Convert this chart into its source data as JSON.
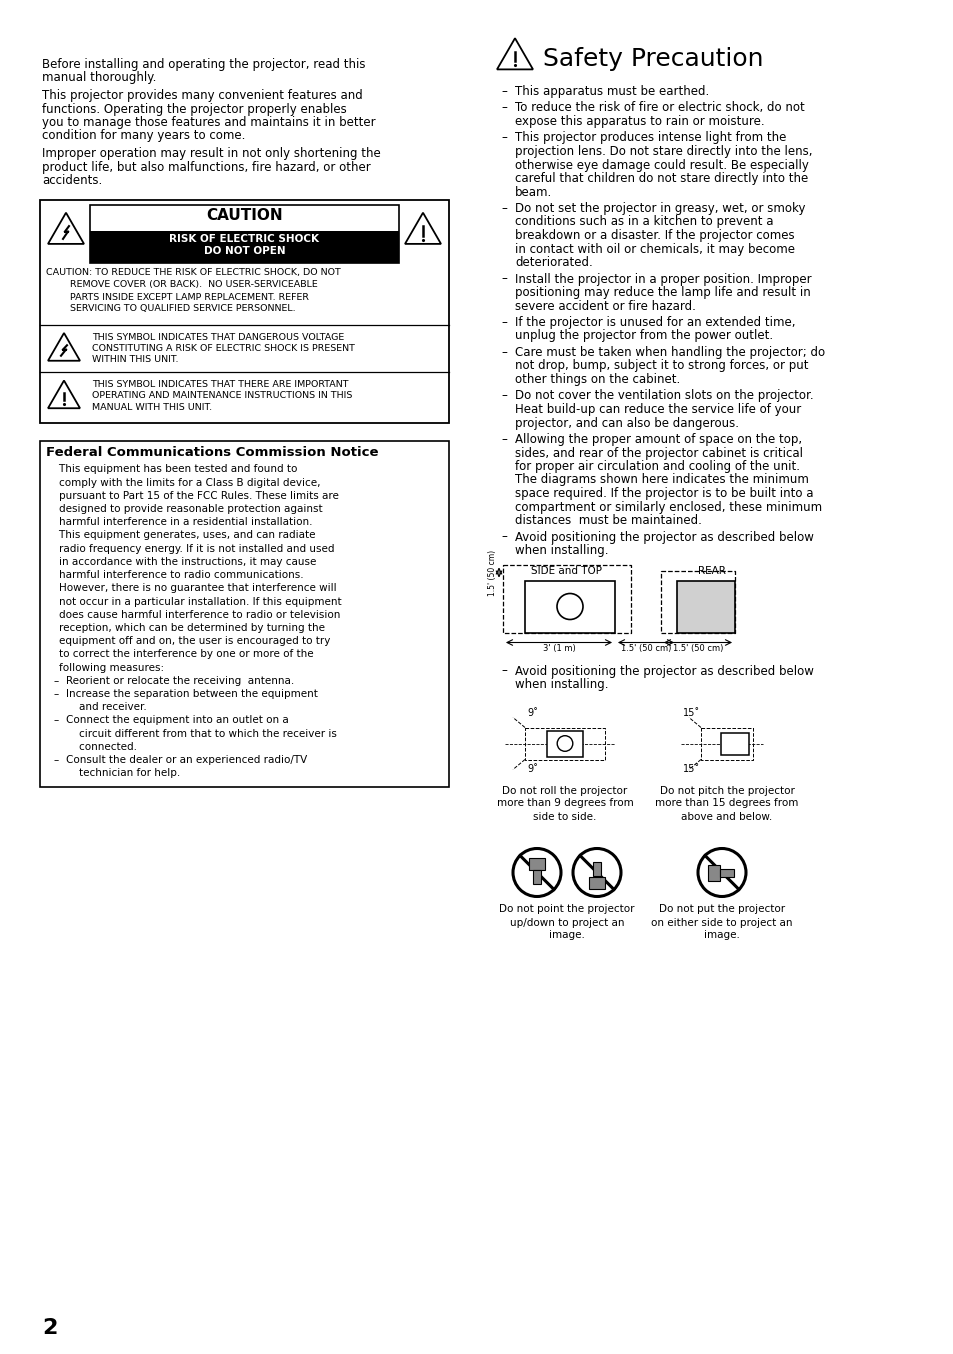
{
  "bg_color": "#ffffff",
  "page_number": "2",
  "left_intro_paras": [
    "Before installing and operating the projector, read this\nmanual thoroughly.",
    "This projector provides many convenient features and\nfunctions. Operating the projector properly enables\nyou to manage those features and maintains it in better\ncondition for many years to come.",
    "Improper operation may result in not only shortening the\nproduct life, but also malfunctions, fire hazard, or other\naccidents."
  ],
  "caution_title": "CAUTION",
  "caution_black1": "RISK OF ELECTRIC SHOCK",
  "caution_black2": "DO NOT OPEN",
  "caution_body_lines": [
    "CAUTION: TO REDUCE THE RISK OF ELECTRIC SHOCK, DO NOT",
    "        REMOVE COVER (OR BACK).  NO USER-SERVICEABLE",
    "        PARTS INSIDE EXCEPT LAMP REPLACEMENT. REFER",
    "        SERVICING TO QUALIFIED SERVICE PERSONNEL."
  ],
  "sym1_lines": [
    "THIS SYMBOL INDICATES THAT DANGEROUS VOLTAGE",
    "CONSTITUTING A RISK OF ELECTRIC SHOCK IS PRESENT",
    "WITHIN THIS UNIT."
  ],
  "sym2_lines": [
    "THIS SYMBOL INDICATES THAT THERE ARE IMPORTANT",
    "OPERATING AND MAINTENANCE INSTRUCTIONS IN THIS",
    "MANUAL WITH THIS UNIT."
  ],
  "fcc_title": "Federal Communications Commission Notice",
  "fcc_body_lines": [
    "    This equipment has been tested and found to",
    "    comply with the limits for a Class B digital device,",
    "    pursuant to Part 15 of the FCC Rules. These limits are",
    "    designed to provide reasonable protection against",
    "    harmful interference in a residential installation.",
    "    This equipment generates, uses, and can radiate",
    "    radio frequency energy. If it is not installed and used",
    "    in accordance with the instructions, it may cause",
    "    harmful interference to radio communications.",
    "    However, there is no guarantee that interference will",
    "    not occur in a particular installation. If this equipment",
    "    does cause harmful interference to radio or television",
    "    reception, which can be determined by turning the",
    "    equipment off and on, the user is encouraged to try",
    "    to correct the interference by one or more of the",
    "    following measures:"
  ],
  "fcc_bullet_lines": [
    [
      "Reorient or relocate the receiving  antenna."
    ],
    [
      "Increase the separation between the equipment",
      "    and receiver."
    ],
    [
      "Connect the equipment into an outlet on a",
      "    circuit different from that to which the receiver is",
      "    connected."
    ],
    [
      "Consult the dealer or an experienced radio/TV",
      "    technician for help."
    ]
  ],
  "safety_title": "Safety Precaution",
  "safety_bullet_lines": [
    [
      "This apparatus must be earthed."
    ],
    [
      "To reduce the risk of fire or electric shock, do not",
      "expose this apparatus to rain or moisture."
    ],
    [
      "This projector produces intense light from the",
      "projection lens. Do not stare directly into the lens,",
      "otherwise eye damage could result. Be especially",
      "careful that children do not stare directly into the",
      "beam."
    ],
    [
      "Do not set the projector in greasy, wet, or smoky",
      "conditions such as in a kitchen to prevent a",
      "breakdown or a disaster. If the projector comes",
      "in contact with oil or chemicals, it may become",
      "deteriorated."
    ],
    [
      "Install the projector in a proper position. Improper",
      "positioning may reduce the lamp life and result in",
      "severe accident or fire hazard."
    ],
    [
      "If the projector is unused for an extended time,",
      "unplug the projector from the power outlet."
    ],
    [
      "Care must be taken when handling the projector; do",
      "not drop, bump, subject it to strong forces, or put",
      "other things on the cabinet."
    ],
    [
      "Do not cover the ventilation slots on the projector.",
      "Heat build-up can reduce the service life of your",
      "projector, and can also be dangerous."
    ],
    [
      "Allowing the proper amount of space on the top,",
      "sides, and rear of the projector cabinet is critical",
      "for proper air circulation and cooling of the unit.",
      "The diagrams shown here indicates the minimum",
      "space required. If the projector is to be built into a",
      "compartment or similarly enclosed, these minimum",
      "distances  must be maintained."
    ],
    [
      "Avoid positioning the projector as described below",
      "when installing."
    ]
  ],
  "diagram_side_top": "SIDE and TOP",
  "diagram_rear": "REAR",
  "diagram_left_label": "1.5' (50 cm)",
  "diagram_bot1": "3' (1 m)",
  "diagram_bot2": "1.5' (50 cm)",
  "diagram_bot3": "1.5' (50 cm)",
  "roll_deg": "9˚",
  "pitch_deg": "15˚",
  "roll_caption": [
    "Do not roll the projector",
    "more than 9 degrees from",
    "side to side."
  ],
  "pitch_caption": [
    "Do not pitch the projector",
    "more than 15 degrees from",
    "above and below."
  ],
  "nopoint_caption": [
    "Do not point the projector",
    "up/down to project an",
    "image."
  ],
  "noside_caption": [
    "Do not put the projector",
    "on either side to project an",
    "image."
  ]
}
